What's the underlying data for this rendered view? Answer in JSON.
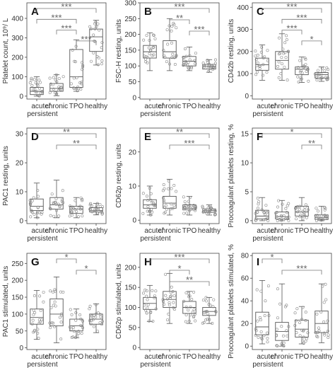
{
  "chart_data": [
    {
      "panel": "A",
      "type": "box",
      "ylabel": "Platelet count, 10⁹/ L",
      "categories": [
        "acute/ persistent",
        "chronic",
        "TPO",
        "healthy"
      ],
      "yticks": [
        0,
        100,
        200,
        300,
        400
      ],
      "ylim": [
        -15,
        480
      ],
      "boxes": [
        {
          "q1": 8,
          "median": 25,
          "q3": 45,
          "whislo": 0,
          "whishi": 100
        },
        {
          "q1": 25,
          "median": 40,
          "q3": 65,
          "whislo": 2,
          "whishi": 110
        },
        {
          "q1": 45,
          "median": 100,
          "q3": 240,
          "whislo": 25,
          "whishi": 290
        },
        {
          "q1": 230,
          "median": 305,
          "q3": 345,
          "whislo": 160,
          "whishi": 390
        }
      ],
      "brackets": [
        {
          "from": 0,
          "to": 3,
          "stars": "***"
        },
        {
          "from": 0,
          "to": 2,
          "stars": "***"
        },
        {
          "from": 1,
          "to": 2,
          "stars": "***"
        },
        {
          "from": 2,
          "to": 3,
          "stars": "***"
        }
      ]
    },
    {
      "panel": "B",
      "type": "box",
      "ylabel": "FSC-H resting, units",
      "categories": [
        "acute/ persistent",
        "chronic",
        "TPO",
        "healthy"
      ],
      "yticks": [
        0,
        50,
        100,
        150,
        200,
        250,
        300
      ],
      "ylim": [
        -5,
        300
      ],
      "boxes": [
        {
          "q1": 125,
          "median": 145,
          "q3": 165,
          "whislo": 85,
          "whishi": 205
        },
        {
          "q1": 125,
          "median": 145,
          "q3": 180,
          "whislo": 85,
          "whishi": 250
        },
        {
          "q1": 100,
          "median": 115,
          "q3": 130,
          "whislo": 85,
          "whishi": 160
        },
        {
          "q1": 90,
          "median": 98,
          "q3": 105,
          "whislo": 80,
          "whishi": 120
        }
      ],
      "brackets": [
        {
          "from": 0,
          "to": 3,
          "stars": "***"
        },
        {
          "from": 1,
          "to": 2,
          "stars": "**"
        },
        {
          "from": 2,
          "to": 3,
          "stars": "***"
        }
      ]
    },
    {
      "panel": "C",
      "type": "box",
      "ylabel": "CD42b resting, units",
      "categories": [
        "acute/ persistent",
        "chronic",
        "TPO",
        "healthy"
      ],
      "yticks": [
        0,
        100,
        200,
        300,
        400
      ],
      "ylim": [
        -15,
        420
      ],
      "boxes": [
        {
          "q1": 115,
          "median": 140,
          "q3": 170,
          "whislo": 70,
          "whishi": 230
        },
        {
          "q1": 120,
          "median": 160,
          "q3": 200,
          "whislo": 70,
          "whishi": 280
        },
        {
          "q1": 95,
          "median": 120,
          "q3": 130,
          "whislo": 60,
          "whishi": 175
        },
        {
          "q1": 80,
          "median": 95,
          "q3": 105,
          "whislo": 65,
          "whishi": 130
        }
      ],
      "brackets": [
        {
          "from": 0,
          "to": 3,
          "stars": "***"
        },
        {
          "from": 1,
          "to": 3,
          "stars": "***"
        },
        {
          "from": 1,
          "to": 2,
          "stars": "***"
        },
        {
          "from": 2,
          "to": 3,
          "stars": "*"
        }
      ]
    },
    {
      "panel": "D",
      "type": "box",
      "ylabel": "PAC1 resting, units",
      "categories": [
        "acute/ persistent",
        "chronic",
        "TPO",
        "healthy"
      ],
      "yticks": [
        0,
        10,
        20,
        30
      ],
      "ylim": [
        -1,
        32
      ],
      "boxes": [
        {
          "q1": 3.5,
          "median": 5,
          "q3": 7.5,
          "whislo": 1,
          "whishi": 13
        },
        {
          "q1": 4,
          "median": 5.5,
          "q3": 8,
          "whislo": 1,
          "whishi": 14
        },
        {
          "q1": 2.5,
          "median": 4,
          "q3": 5,
          "whislo": 1,
          "whishi": 8
        },
        {
          "q1": 3,
          "median": 3.5,
          "q3": 4.5,
          "whislo": 2,
          "whishi": 6
        }
      ],
      "brackets": [
        {
          "from": 0,
          "to": 3,
          "stars": "**"
        },
        {
          "from": 1,
          "to": 3,
          "stars": "**"
        }
      ]
    },
    {
      "panel": "E",
      "type": "box",
      "ylabel": "CD62p resting, units",
      "categories": [
        "acute/ persistent",
        "chronic",
        "TPO",
        "healthy"
      ],
      "yticks": [
        0,
        10,
        20
      ],
      "ylim": [
        -1,
        27
      ],
      "boxes": [
        {
          "q1": 3.5,
          "median": 4.5,
          "q3": 6,
          "whislo": 1.5,
          "whishi": 10
        },
        {
          "q1": 3.5,
          "median": 5,
          "q3": 7,
          "whislo": 1.5,
          "whishi": 12
        },
        {
          "q1": 3,
          "median": 3.5,
          "q3": 4.5,
          "whislo": 1.5,
          "whishi": 7
        },
        {
          "q1": 2.3,
          "median": 2.8,
          "q3": 3.3,
          "whislo": 1.5,
          "whishi": 4.5
        }
      ],
      "brackets": [
        {
          "from": 0,
          "to": 3,
          "stars": "**"
        },
        {
          "from": 1,
          "to": 3,
          "stars": "***"
        }
      ]
    },
    {
      "panel": "F",
      "type": "box",
      "ylabel": "Procoagulant platelets resting, %",
      "categories": [
        "acute/ persistent",
        "chronic",
        "TPO",
        "healthy"
      ],
      "yticks": [
        0,
        5,
        10,
        15
      ],
      "ylim": [
        -0.5,
        16
      ],
      "boxes": [
        {
          "q1": 0.3,
          "median": 0.8,
          "q3": 1.8,
          "whislo": 0,
          "whishi": 4
        },
        {
          "q1": 0.3,
          "median": 0.7,
          "q3": 1.5,
          "whislo": 0,
          "whishi": 3.5
        },
        {
          "q1": 0.8,
          "median": 1.5,
          "q3": 2.5,
          "whislo": 0,
          "whishi": 4
        },
        {
          "q1": 0.2,
          "median": 0.5,
          "q3": 1.0,
          "whislo": 0,
          "whishi": 2.5
        }
      ],
      "brackets": [
        {
          "from": 0,
          "to": 3,
          "stars": "*"
        },
        {
          "from": 2,
          "to": 3,
          "stars": "**"
        }
      ]
    },
    {
      "panel": "G",
      "type": "box",
      "ylabel": "PAC1 stimulated, units",
      "categories": [
        "acute/ persistent",
        "chronic",
        "TPO",
        "healthy"
      ],
      "yticks": [
        0,
        50,
        100,
        150,
        200,
        250
      ],
      "ylim": [
        -5,
        280
      ],
      "boxes": [
        {
          "q1": 70,
          "median": 90,
          "q3": 115,
          "whislo": 25,
          "whishi": 170
        },
        {
          "q1": 65,
          "median": 100,
          "q3": 145,
          "whislo": 15,
          "whishi": 210
        },
        {
          "q1": 50,
          "median": 65,
          "q3": 85,
          "whislo": 30,
          "whishi": 115
        },
        {
          "q1": 70,
          "median": 85,
          "q3": 100,
          "whislo": 45,
          "whishi": 130
        }
      ],
      "brackets": [
        {
          "from": 1,
          "to": 2,
          "stars": "*"
        },
        {
          "from": 2,
          "to": 3,
          "stars": "*"
        }
      ]
    },
    {
      "panel": "H",
      "type": "box",
      "ylabel": "CD62p stimulated, units",
      "categories": [
        "acute/ persistent",
        "chronic",
        "TPO",
        "healthy"
      ],
      "yticks": [
        0,
        50,
        100,
        150,
        200
      ],
      "ylim": [
        -5,
        235
      ],
      "boxes": [
        {
          "q1": 95,
          "median": 110,
          "q3": 125,
          "whislo": 65,
          "whishi": 155
        },
        {
          "q1": 100,
          "median": 120,
          "q3": 140,
          "whislo": 60,
          "whishi": 185
        },
        {
          "q1": 85,
          "median": 100,
          "q3": 115,
          "whislo": 60,
          "whishi": 140
        },
        {
          "q1": 80,
          "median": 90,
          "q3": 100,
          "whislo": 60,
          "whishi": 125
        }
      ],
      "brackets": [
        {
          "from": 0,
          "to": 3,
          "stars": "***"
        },
        {
          "from": 1,
          "to": 2,
          "stars": "*"
        },
        {
          "from": 1,
          "to": 3,
          "stars": "**"
        }
      ]
    },
    {
      "panel": "I",
      "type": "box",
      "ylabel": "Procoagulant platelets stimulated, %",
      "categories": [
        "acute/ persistent",
        "chronic",
        "TPO",
        "healthy"
      ],
      "yticks": [
        0,
        20,
        40,
        60,
        80
      ],
      "ylim": [
        -3,
        82
      ],
      "boxes": [
        {
          "q1": 10,
          "median": 17,
          "q3": 30,
          "whislo": 2,
          "whishi": 58
        },
        {
          "q1": 5,
          "median": 13,
          "q3": 21,
          "whislo": 0,
          "whishi": 55
        },
        {
          "q1": 8,
          "median": 15,
          "q3": 23,
          "whislo": 2,
          "whishi": 35
        },
        {
          "q1": 12,
          "median": 20,
          "q3": 31,
          "whislo": 3,
          "whishi": 55
        }
      ],
      "brackets": [
        {
          "from": 0,
          "to": 1,
          "stars": "*"
        },
        {
          "from": 1,
          "to": 3,
          "stars": "***"
        }
      ]
    }
  ]
}
